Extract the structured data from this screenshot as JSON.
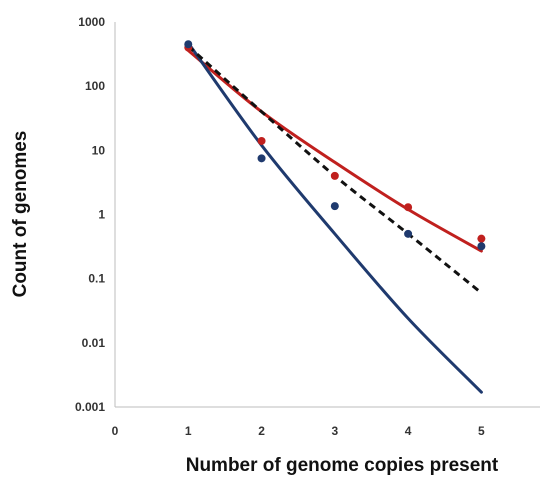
{
  "chart_data": {
    "type": "scatter",
    "title": "",
    "xlabel": "Number of genome copies present",
    "ylabel": "Count of genomes",
    "x_ticks": [
      "0",
      "1",
      "2",
      "3",
      "4",
      "5"
    ],
    "y_ticks": [
      "0.001",
      "0.01",
      "0.1",
      "1",
      "10",
      "100",
      "1000"
    ],
    "xlim": [
      0,
      5.8
    ],
    "ylim": [
      0.001,
      1000
    ],
    "y_scale": "log",
    "grid": false,
    "legend": "none",
    "series": [
      {
        "kind": "points",
        "color": "#c0201e",
        "x": [
          1,
          2,
          3,
          4,
          5
        ],
        "y": [
          400,
          14,
          4,
          1.3,
          0.42
        ]
      },
      {
        "kind": "points",
        "color": "#1f3a6e",
        "x": [
          1,
          2,
          3,
          4,
          5
        ],
        "y": [
          450,
          7.5,
          1.35,
          0.5,
          0.32
        ]
      },
      {
        "kind": "line",
        "style": "solid",
        "color": "#c0201e",
        "x": [
          1,
          2,
          3,
          4,
          5
        ],
        "y": [
          360,
          40,
          6.5,
          1.2,
          0.27
        ]
      },
      {
        "kind": "line",
        "style": "solid",
        "color": "#1f3a6e",
        "x": [
          1,
          2,
          3,
          4,
          5
        ],
        "y": [
          470,
          12,
          0.5,
          0.024,
          0.0017
        ]
      },
      {
        "kind": "line",
        "style": "dashed",
        "color": "#111111",
        "x": [
          1,
          2,
          3,
          4,
          5
        ],
        "y": [
          420,
          40,
          4,
          0.5,
          0.06
        ]
      }
    ]
  }
}
